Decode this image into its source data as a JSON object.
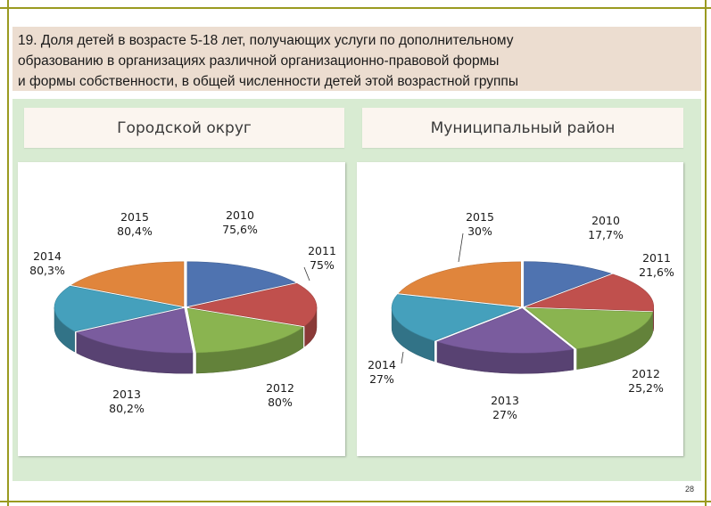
{
  "title": {
    "line1": "19.  Доля  детей  в  возрасте  5-18  лет,  получающих  услуги  по  дополнительному",
    "line2": "образованию  в  организациях  различной  организационно-правовой  формы",
    "line3": "и формы собственности, в общей численности детей этой возрастной группы"
  },
  "page_number": "28",
  "colors": {
    "2010": "#4f73b0",
    "2011": "#c0504d",
    "2012": "#8ab450",
    "2013": "#7a5c9e",
    "2014": "#45a0bc",
    "2015": "#e0853c"
  },
  "chart_data": [
    {
      "type": "pie",
      "title": "Городской округ",
      "categories": [
        "2010",
        "2011",
        "2012",
        "2013",
        "2014",
        "2015"
      ],
      "values": [
        75.6,
        75,
        80,
        80.2,
        80.3,
        80.4
      ],
      "value_labels": [
        "75,6%",
        "75%",
        "80%",
        "80,2%",
        "80,3%",
        "80,4%"
      ],
      "style": "3d-exploded"
    },
    {
      "type": "pie",
      "title": "Муниципальный район",
      "categories": [
        "2010",
        "2011",
        "2012",
        "2013",
        "2014",
        "2015"
      ],
      "values": [
        17.7,
        21.6,
        25.2,
        27,
        27,
        30
      ],
      "value_labels": [
        "17,7%",
        "21,6%",
        "25,2%",
        "27%",
        "27%",
        "30%"
      ],
      "style": "3d-exploded"
    }
  ]
}
